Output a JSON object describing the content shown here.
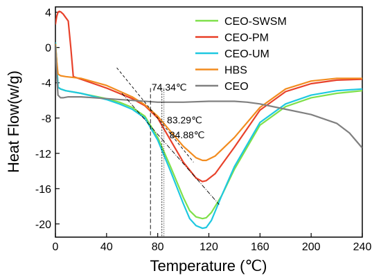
{
  "chart_data": {
    "type": "line",
    "xlabel": "Temperature (℃)",
    "ylabel": "Heat Flow(w/g)",
    "xlim": [
      0,
      240
    ],
    "ylim": [
      -21.5,
      4.6
    ],
    "xticks": [
      0,
      40,
      80,
      120,
      160,
      200,
      240
    ],
    "yticks": [
      4,
      0,
      -4,
      -8,
      -12,
      -16,
      -20
    ],
    "grid": false,
    "legend_position": "top-right",
    "series": [
      {
        "name": "CEO-SWSM",
        "color": "#7fe04a",
        "x": [
          0,
          1,
          2,
          4,
          8,
          20,
          40,
          50,
          60,
          70,
          80,
          90,
          100,
          105,
          110,
          115,
          118,
          122,
          130,
          140,
          160,
          180,
          200,
          220,
          240
        ],
        "y": [
          0.6,
          -1.5,
          -4.5,
          -4.7,
          -4.9,
          -5.2,
          -5.8,
          -6.2,
          -6.8,
          -7.8,
          -10.2,
          -13.5,
          -17.0,
          -18.5,
          -19.2,
          -19.4,
          -19.3,
          -18.7,
          -16.8,
          -13.8,
          -8.8,
          -6.7,
          -5.7,
          -5.2,
          -4.9
        ]
      },
      {
        "name": "CEO-PM",
        "color": "#e8412a",
        "x": [
          0,
          1,
          2,
          3,
          4,
          6,
          8,
          10,
          12,
          14,
          20,
          40,
          60,
          70,
          80,
          90,
          100,
          110,
          115,
          118,
          125,
          140,
          160,
          180,
          200,
          220,
          240
        ],
        "y": [
          2.6,
          3.5,
          4.0,
          4.1,
          4.05,
          3.8,
          3.4,
          3.0,
          0.0,
          -3.3,
          -3.6,
          -4.6,
          -5.8,
          -6.6,
          -8.0,
          -10.5,
          -13.0,
          -14.8,
          -15.2,
          -15.1,
          -14.3,
          -11.3,
          -7.1,
          -5.0,
          -4.1,
          -3.7,
          -3.6
        ]
      },
      {
        "name": "CEO-UM",
        "color": "#1ec8e0",
        "x": [
          0,
          1,
          2,
          4,
          8,
          20,
          40,
          50,
          60,
          70,
          80,
          90,
          100,
          105,
          110,
          115,
          118,
          122,
          130,
          140,
          160,
          180,
          200,
          220,
          240
        ],
        "y": [
          0.6,
          -1.5,
          -4.5,
          -4.7,
          -4.9,
          -5.2,
          -5.9,
          -6.4,
          -7.0,
          -8.0,
          -10.5,
          -14.0,
          -17.7,
          -19.4,
          -20.2,
          -20.5,
          -20.4,
          -19.6,
          -16.8,
          -13.5,
          -8.5,
          -6.4,
          -5.4,
          -4.9,
          -4.7
        ]
      },
      {
        "name": "HBS",
        "color": "#f28c1f",
        "x": [
          0,
          1,
          2,
          4,
          8,
          20,
          40,
          60,
          70,
          80,
          90,
          100,
          110,
          115,
          118,
          125,
          140,
          160,
          180,
          200,
          220,
          240
        ],
        "y": [
          0.4,
          -1.5,
          -3.0,
          -3.2,
          -3.3,
          -3.5,
          -4.3,
          -5.6,
          -6.5,
          -7.8,
          -9.5,
          -11.2,
          -12.5,
          -12.8,
          -12.8,
          -12.3,
          -10.2,
          -6.8,
          -4.7,
          -3.8,
          -3.5,
          -3.5
        ]
      },
      {
        "name": "CEO",
        "color": "#808080",
        "x": [
          0,
          1,
          2,
          4,
          6,
          10,
          20,
          40,
          60,
          80,
          100,
          120,
          140,
          150,
          160,
          180,
          200,
          220,
          230,
          240
        ],
        "y": [
          0.2,
          -3.0,
          -5.4,
          -5.7,
          -5.7,
          -5.6,
          -5.6,
          -5.8,
          -6.0,
          -6.2,
          -6.2,
          -6.1,
          -6.1,
          -6.2,
          -6.4,
          -7.0,
          -7.6,
          -8.6,
          -9.7,
          -11.4
        ]
      }
    ],
    "annotations": [
      {
        "text": "74.34℃",
        "x": 74.34,
        "label_x": 89,
        "label_y": -4.9
      },
      {
        "text": "83.29℃",
        "x": 83.29,
        "label_x": 101,
        "label_y": -8.6
      },
      {
        "text": "84.88℃",
        "x": 84.88,
        "label_x": 103,
        "label_y": -10.3
      }
    ],
    "tangent_lines": [
      {
        "x1": 48,
        "y1": -2.3,
        "x2": 108,
        "y2": -13.0,
        "style": "dashed"
      },
      {
        "x1": 52,
        "y1": -5.2,
        "x2": 128,
        "y2": -17.8,
        "style": "dashdot"
      }
    ]
  }
}
